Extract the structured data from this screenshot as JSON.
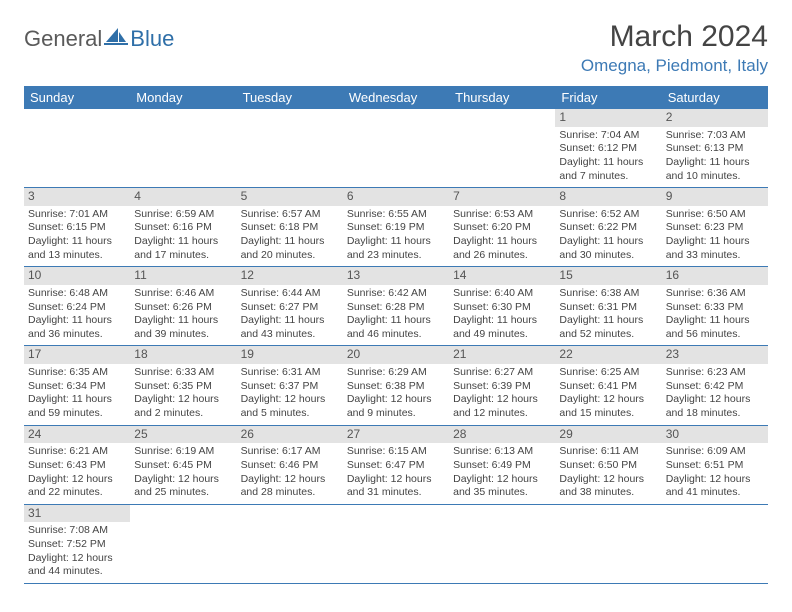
{
  "logo": {
    "text1": "General",
    "text2": "Blue"
  },
  "title": "March 2024",
  "location": "Omegna, Piedmont, Italy",
  "colors": {
    "header_bg": "#3d7ab5",
    "header_text": "#ffffff",
    "daynum_bg": "#e3e3e3",
    "border": "#3d7ab5",
    "accent": "#3d7ab5"
  },
  "weekdays": [
    "Sunday",
    "Monday",
    "Tuesday",
    "Wednesday",
    "Thursday",
    "Friday",
    "Saturday"
  ],
  "weeks": [
    [
      null,
      null,
      null,
      null,
      null,
      {
        "n": "1",
        "sr": "7:04 AM",
        "ss": "6:12 PM",
        "dl": "11 hours and 7 minutes."
      },
      {
        "n": "2",
        "sr": "7:03 AM",
        "ss": "6:13 PM",
        "dl": "11 hours and 10 minutes."
      }
    ],
    [
      {
        "n": "3",
        "sr": "7:01 AM",
        "ss": "6:15 PM",
        "dl": "11 hours and 13 minutes."
      },
      {
        "n": "4",
        "sr": "6:59 AM",
        "ss": "6:16 PM",
        "dl": "11 hours and 17 minutes."
      },
      {
        "n": "5",
        "sr": "6:57 AM",
        "ss": "6:18 PM",
        "dl": "11 hours and 20 minutes."
      },
      {
        "n": "6",
        "sr": "6:55 AM",
        "ss": "6:19 PM",
        "dl": "11 hours and 23 minutes."
      },
      {
        "n": "7",
        "sr": "6:53 AM",
        "ss": "6:20 PM",
        "dl": "11 hours and 26 minutes."
      },
      {
        "n": "8",
        "sr": "6:52 AM",
        "ss": "6:22 PM",
        "dl": "11 hours and 30 minutes."
      },
      {
        "n": "9",
        "sr": "6:50 AM",
        "ss": "6:23 PM",
        "dl": "11 hours and 33 minutes."
      }
    ],
    [
      {
        "n": "10",
        "sr": "6:48 AM",
        "ss": "6:24 PM",
        "dl": "11 hours and 36 minutes."
      },
      {
        "n": "11",
        "sr": "6:46 AM",
        "ss": "6:26 PM",
        "dl": "11 hours and 39 minutes."
      },
      {
        "n": "12",
        "sr": "6:44 AM",
        "ss": "6:27 PM",
        "dl": "11 hours and 43 minutes."
      },
      {
        "n": "13",
        "sr": "6:42 AM",
        "ss": "6:28 PM",
        "dl": "11 hours and 46 minutes."
      },
      {
        "n": "14",
        "sr": "6:40 AM",
        "ss": "6:30 PM",
        "dl": "11 hours and 49 minutes."
      },
      {
        "n": "15",
        "sr": "6:38 AM",
        "ss": "6:31 PM",
        "dl": "11 hours and 52 minutes."
      },
      {
        "n": "16",
        "sr": "6:36 AM",
        "ss": "6:33 PM",
        "dl": "11 hours and 56 minutes."
      }
    ],
    [
      {
        "n": "17",
        "sr": "6:35 AM",
        "ss": "6:34 PM",
        "dl": "11 hours and 59 minutes."
      },
      {
        "n": "18",
        "sr": "6:33 AM",
        "ss": "6:35 PM",
        "dl": "12 hours and 2 minutes."
      },
      {
        "n": "19",
        "sr": "6:31 AM",
        "ss": "6:37 PM",
        "dl": "12 hours and 5 minutes."
      },
      {
        "n": "20",
        "sr": "6:29 AM",
        "ss": "6:38 PM",
        "dl": "12 hours and 9 minutes."
      },
      {
        "n": "21",
        "sr": "6:27 AM",
        "ss": "6:39 PM",
        "dl": "12 hours and 12 minutes."
      },
      {
        "n": "22",
        "sr": "6:25 AM",
        "ss": "6:41 PM",
        "dl": "12 hours and 15 minutes."
      },
      {
        "n": "23",
        "sr": "6:23 AM",
        "ss": "6:42 PM",
        "dl": "12 hours and 18 minutes."
      }
    ],
    [
      {
        "n": "24",
        "sr": "6:21 AM",
        "ss": "6:43 PM",
        "dl": "12 hours and 22 minutes."
      },
      {
        "n": "25",
        "sr": "6:19 AM",
        "ss": "6:45 PM",
        "dl": "12 hours and 25 minutes."
      },
      {
        "n": "26",
        "sr": "6:17 AM",
        "ss": "6:46 PM",
        "dl": "12 hours and 28 minutes."
      },
      {
        "n": "27",
        "sr": "6:15 AM",
        "ss": "6:47 PM",
        "dl": "12 hours and 31 minutes."
      },
      {
        "n": "28",
        "sr": "6:13 AM",
        "ss": "6:49 PM",
        "dl": "12 hours and 35 minutes."
      },
      {
        "n": "29",
        "sr": "6:11 AM",
        "ss": "6:50 PM",
        "dl": "12 hours and 38 minutes."
      },
      {
        "n": "30",
        "sr": "6:09 AM",
        "ss": "6:51 PM",
        "dl": "12 hours and 41 minutes."
      }
    ],
    [
      {
        "n": "31",
        "sr": "7:08 AM",
        "ss": "7:52 PM",
        "dl": "12 hours and 44 minutes."
      },
      null,
      null,
      null,
      null,
      null,
      null
    ]
  ],
  "labels": {
    "sunrise": "Sunrise:",
    "sunset": "Sunset:",
    "daylight": "Daylight:"
  }
}
